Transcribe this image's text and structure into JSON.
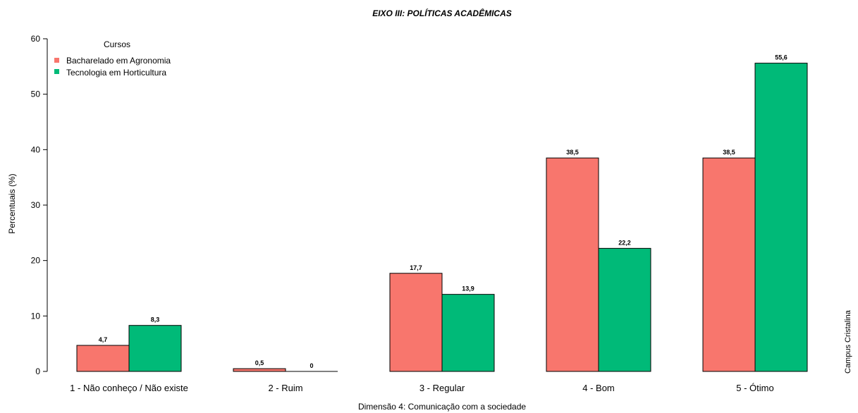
{
  "chart_data": {
    "type": "bar",
    "title": "EIXO III: POLÍTICAS ACADÊMICAS",
    "xlabel": "Dimensão 4: Comunicação com a sociedade",
    "ylabel": "Percentuais (%)",
    "ylim": [
      0,
      60
    ],
    "yticks": [
      "0",
      "10",
      "20",
      "30",
      "40",
      "50",
      "60"
    ],
    "categories": [
      "1 - Não conheço / Não existe",
      "2 - Ruim",
      "3 - Regular",
      "4 - Bom",
      "5 - Ótimo"
    ],
    "legend": {
      "title": "Cursos",
      "position": "top-left"
    },
    "series": [
      {
        "name": "Bacharelado em Agronomia",
        "color": "#F8766D",
        "values": [
          4.7,
          0.5,
          17.7,
          38.5,
          38.5
        ],
        "labels": [
          "4,7",
          "0,5",
          "17,7",
          "38,5",
          "38,5"
        ]
      },
      {
        "name": "Tecnologia em Horticultura",
        "color": "#00BA78",
        "values": [
          8.3,
          0,
          13.9,
          22.2,
          55.6
        ],
        "labels": [
          "8,3",
          "0",
          "13,9",
          "22,2",
          "55,6"
        ]
      }
    ],
    "grid": false
  },
  "side_note": "Campus Cristalina"
}
